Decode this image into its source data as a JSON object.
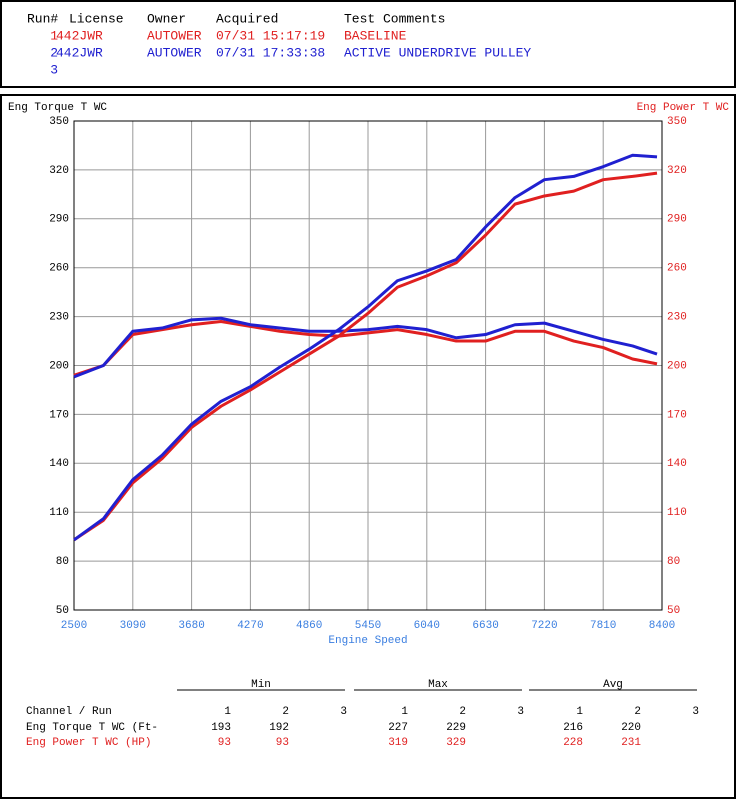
{
  "header": {
    "columns": [
      "Run#",
      "License",
      "Owner",
      "Acquired",
      "Test Comments"
    ],
    "rows": [
      [
        "1",
        "442JWR",
        "AUTOWER",
        "07/31 15:17:19",
        "BASELINE"
      ],
      [
        "2",
        "442JWR",
        "AUTOWER",
        "07/31 17:33:38",
        "ACTIVE UNDERDRIVE PULLEY"
      ],
      [
        "3"
      ]
    ],
    "row_colors": [
      "#e02020",
      "#2020d0",
      "#2020d0"
    ]
  },
  "chart_data": {
    "type": "line",
    "y_label": "Eng Torque T WC",
    "y2_label": "Eng Power T WC",
    "x_label": "Engine Speed",
    "x": [
      2500,
      2795,
      3090,
      3385,
      3680,
      3975,
      4270,
      4565,
      4860,
      5155,
      5450,
      5745,
      6040,
      6335,
      6630,
      6925,
      7220,
      7515,
      7810,
      8105,
      8350
    ],
    "series": [
      {
        "color": "#e02020",
        "axis": "y",
        "values": [
          194,
          200,
          219,
          222,
          225,
          227,
          224,
          221,
          219,
          218,
          220,
          222,
          219,
          215,
          215,
          221,
          221,
          215,
          211,
          204,
          201
        ]
      },
      {
        "color": "#2020d0",
        "axis": "y",
        "values": [
          193,
          200,
          221,
          223,
          228,
          229,
          225,
          223,
          221,
          221,
          222,
          224,
          222,
          217,
          219,
          225,
          226,
          221,
          216,
          212,
          207
        ]
      },
      {
        "color": "#e02020",
        "axis": "y2",
        "values": [
          93,
          105,
          128,
          143,
          162,
          175,
          185,
          196,
          207,
          218,
          232,
          248,
          255,
          263,
          280,
          299,
          304,
          307,
          314,
          316,
          318
        ]
      },
      {
        "color": "#2020d0",
        "axis": "y2",
        "values": [
          93,
          106,
          130,
          145,
          164,
          178,
          187,
          199,
          210,
          222,
          236,
          252,
          258,
          265,
          285,
          303,
          314,
          316,
          322,
          329,
          328
        ]
      }
    ],
    "xlim": [
      2500,
      8400
    ],
    "xticks": [
      2500,
      3090,
      3680,
      4270,
      4860,
      5450,
      6040,
      6630,
      7220,
      7810,
      8400
    ],
    "ylim": [
      50,
      350
    ],
    "yticks": [
      50,
      80,
      110,
      140,
      170,
      200,
      230,
      260,
      290,
      320,
      350
    ],
    "y2lim": [
      50,
      350
    ],
    "y2ticks": [
      50,
      80,
      110,
      140,
      170,
      200,
      230,
      260,
      290,
      320,
      350
    ],
    "grid": true
  },
  "summary": {
    "groups": [
      "Min",
      "Max",
      "Avg"
    ],
    "runs": [
      1,
      2,
      3
    ],
    "row_header": "Channel / Run",
    "rows": [
      {
        "label": "Eng Torque T WC (Ft-",
        "color": "#000000",
        "min": [
          193,
          192
        ],
        "max": [
          227,
          229
        ],
        "avg": [
          216,
          220
        ]
      },
      {
        "label": "Eng Power T WC (HP)",
        "color": "#e02020",
        "min": [
          93,
          93
        ],
        "max": [
          319,
          329
        ],
        "avg": [
          228,
          231
        ]
      }
    ]
  }
}
